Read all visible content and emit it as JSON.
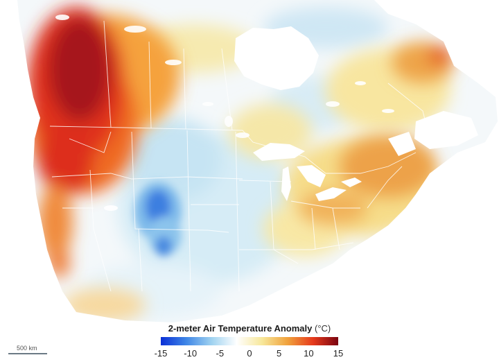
{
  "legend": {
    "title": "2-meter Air Temperature Anomaly",
    "unit": "(°C)",
    "ticks": [
      "-15",
      "-10",
      "-5",
      "0",
      "5",
      "10",
      "15"
    ],
    "colors": [
      "#0a2fd6",
      "#3f86e6",
      "#9fd2f0",
      "#ffffff",
      "#f7e79a",
      "#f0a23c",
      "#e63a1c",
      "#7a0410"
    ]
  },
  "scale_bar": {
    "label": "500 km"
  }
}
